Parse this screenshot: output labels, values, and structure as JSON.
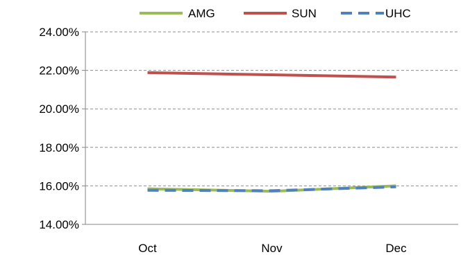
{
  "chart_data": {
    "type": "line",
    "title": "",
    "xlabel": "",
    "ylabel": "",
    "categories": [
      "Oct",
      "Nov",
      "Dec"
    ],
    "ylim": [
      0.14,
      0.24
    ],
    "yticks": [
      0.14,
      0.16,
      0.18,
      0.2,
      0.22,
      0.24
    ],
    "ytick_labels": [
      "14.00%",
      "16.00%",
      "18.00%",
      "20.00%",
      "22.00%",
      "24.00%"
    ],
    "grid": "horizontal dashed",
    "legend": "top",
    "series": [
      {
        "name": "AMG",
        "values": [
          0.1585,
          0.1572,
          0.16
        ],
        "color": "#9bbb59",
        "dash": "solid"
      },
      {
        "name": "SUN",
        "values": [
          0.2188,
          0.2177,
          0.2165
        ],
        "color": "#c0504d",
        "dash": "solid"
      },
      {
        "name": "UHC",
        "values": [
          0.1577,
          0.1575,
          0.1595
        ],
        "color": "#4f81bd",
        "dash": "dashed"
      }
    ]
  }
}
